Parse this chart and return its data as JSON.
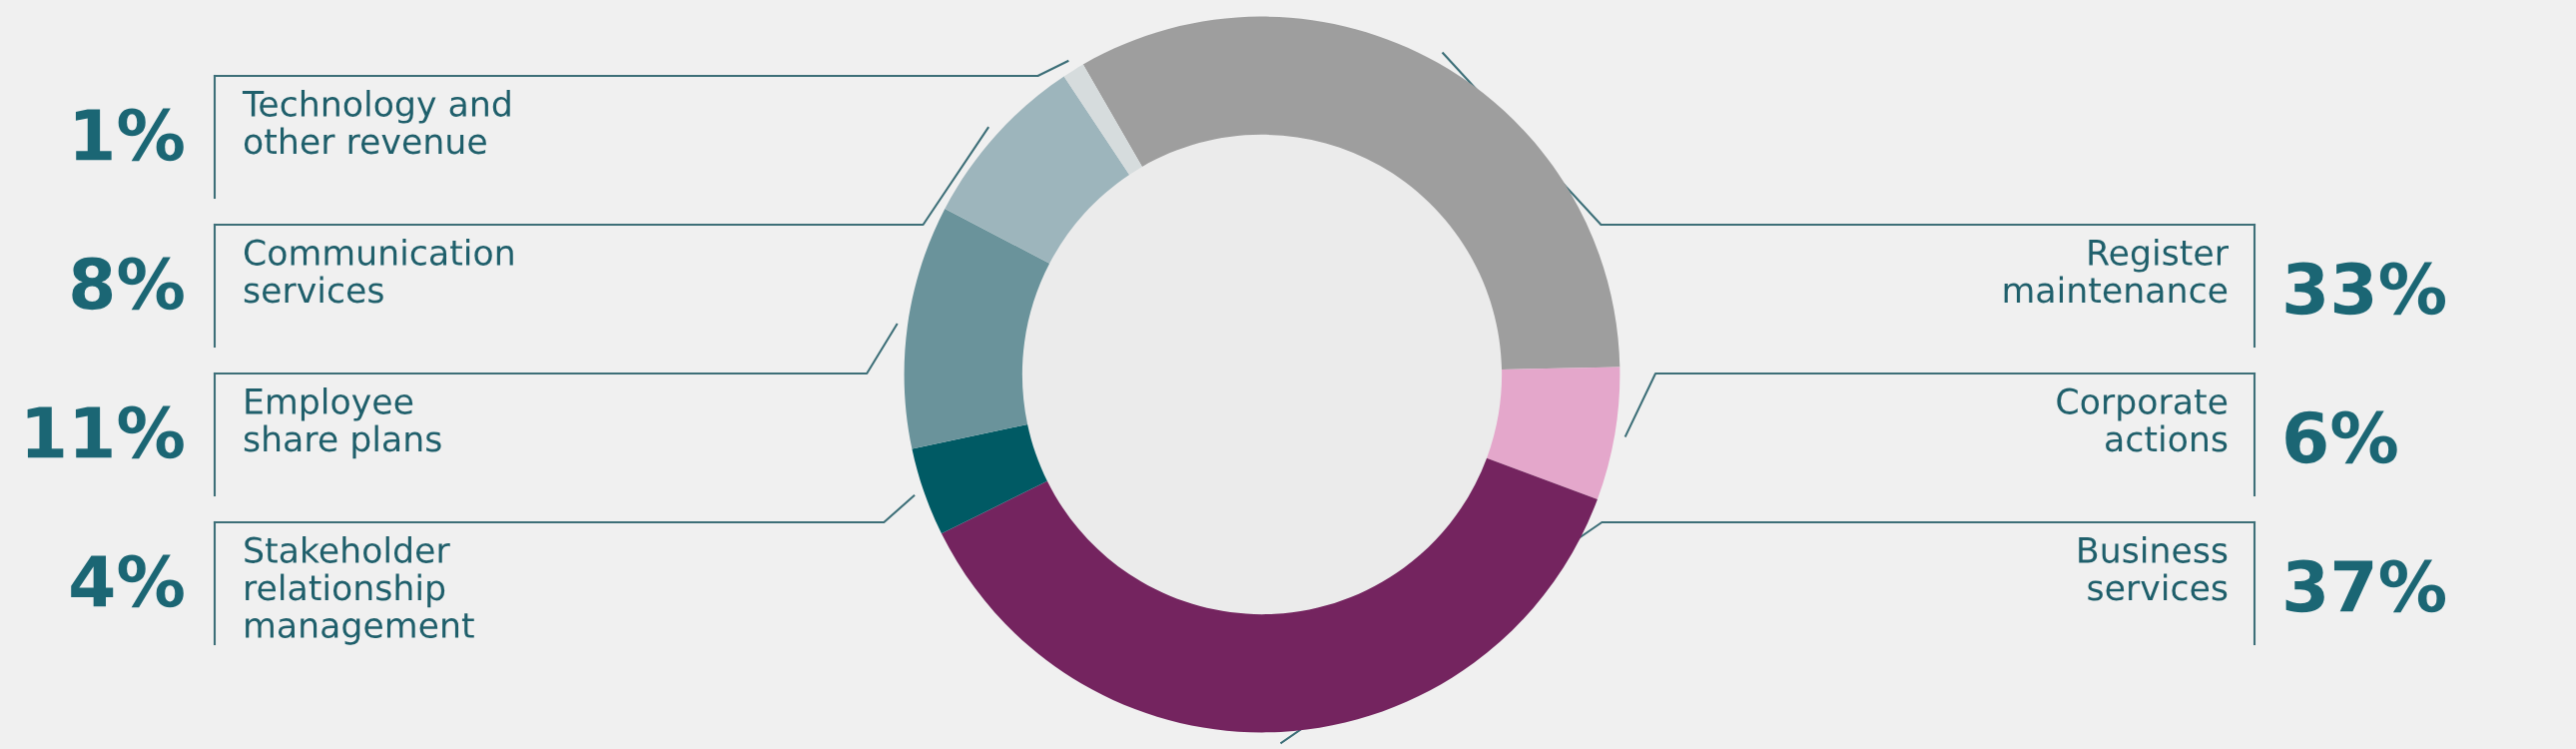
{
  "chart_data": {
    "type": "donut",
    "categories": [
      "Register\nmaintenance",
      "Corporate\nactions",
      "Business\nservices",
      "Stakeholder\nrelationship\nmanagement",
      "Employee\nshare plans",
      "Communication\nservices",
      "Technology and\nother revenue"
    ],
    "values": [
      33,
      6,
      37,
      4,
      11,
      8,
      1
    ],
    "value_labels": [
      "33%",
      "6%",
      "37%",
      "4%",
      "11%",
      "8%",
      "1%"
    ],
    "colors": [
      "#9e9e9e",
      "#e4a7cb",
      "#74245f",
      "#005a64",
      "#6a939b",
      "#9db5bc",
      "#d6dcdd"
    ],
    "legend": false
  }
}
